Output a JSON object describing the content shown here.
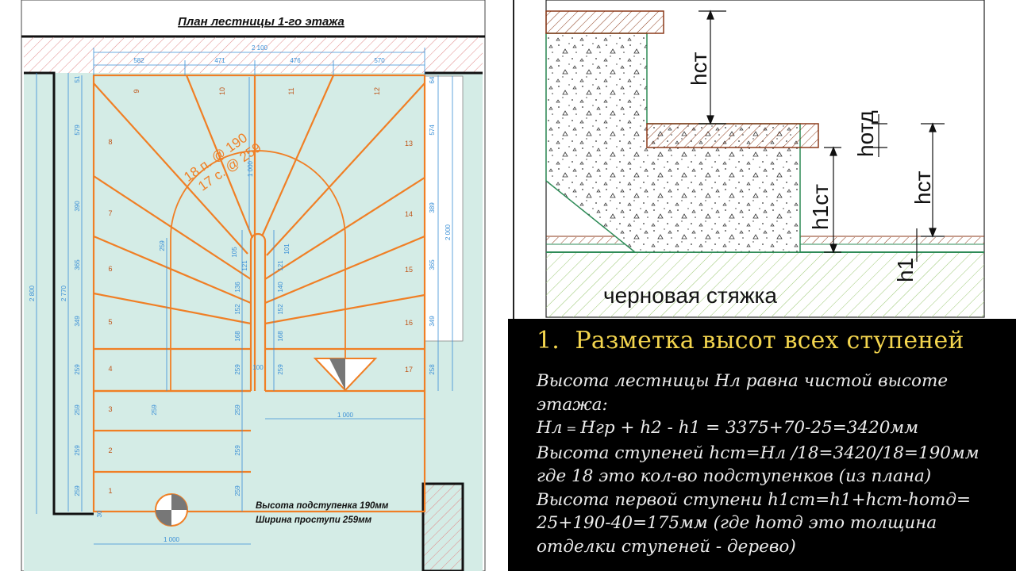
{
  "plan": {
    "title": "План лестницы 1-го этажа",
    "top_dims": [
      "582",
      "471",
      "476",
      "570"
    ],
    "total_width": "2 100",
    "left_dims": [
      "51",
      "579",
      "390",
      "365",
      "349",
      "259",
      "259",
      "259",
      "259",
      "30"
    ],
    "right_dims": [
      "64",
      "574",
      "389",
      "365",
      "349",
      "258"
    ],
    "height_total": "2 800",
    "height_2770": "2 770",
    "height_2000": "2 000",
    "right_len_1000": "1 000",
    "bottom_len_1000": "1 000",
    "center_width": "100",
    "step_numbers": [
      "1",
      "2",
      "3",
      "4",
      "5",
      "6",
      "7",
      "8",
      "9",
      "10",
      "11",
      "12",
      "13",
      "14",
      "15",
      "16",
      "17"
    ],
    "left_inner_dims": [
      "259",
      "259",
      "259",
      "259",
      "259",
      "168",
      "152",
      "136",
      "121",
      "105",
      "259",
      "259"
    ],
    "right_inner_dims": [
      "259",
      "168",
      "152",
      "140",
      "121",
      "101"
    ],
    "small_dims": [
      "38",
      "1 000",
      "10",
      "10"
    ],
    "rise_label_1": "18 п. @ 190",
    "rise_label_2": "17 с. @ 259",
    "note_line_1": "Высота подступенка 190мм",
    "note_line_2": "Ширина проступи 259мм"
  },
  "section": {
    "h_st_top": "hст",
    "h_otd": "hотд",
    "h1_st": "h1ст",
    "h_st_right": "hст",
    "h1": "h1",
    "screed_label": "черновая стяжка"
  },
  "notes": {
    "title_number": "1.",
    "title_text": "Разметка высот всех ступеней",
    "line1": "Высота лестницы Нл  равна чистой высоте",
    "line2": "этажа:",
    "line3a": "Нл",
    "line3b": " = ",
    "line3c": "Нгр",
    "line3d": " + h2 - h1 = 3375+70-25=3420мм",
    "line4": "Высота ступеней hст=Нл /18=3420/18=190мм",
    "line5": "где 18 это кол-во подступенков (из плана)",
    "line6": "Высота первой ступени h1ст=h1+hст-hотд=",
    "line7": "25+190-40=175мм (где hотд это толщина",
    "line8": "отделки  ступеней - дерево)"
  },
  "colors": {
    "stair_orange": "#f07f25",
    "dim_blue": "#3a8fd6",
    "floor_fill": "#d4ece6",
    "wall_hatch": "#e08a8a",
    "title_yellow": "#f3d54e",
    "finish_wood": "#8b3a1a",
    "section_green": "#2e8b57"
  }
}
